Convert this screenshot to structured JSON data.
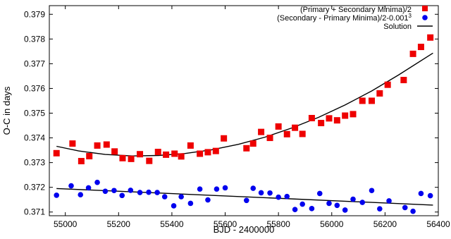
{
  "chart_data": {
    "type": "scatter",
    "xlabel": "BJD - 2400000",
    "ylabel": "O-C in days",
    "xlim": [
      54940,
      56400
    ],
    "ylim": [
      0.37085,
      0.37935
    ],
    "xticks": [
      55000,
      55200,
      55400,
      55600,
      55800,
      56000,
      56200,
      56400
    ],
    "xtick_labels": [
      "55000",
      "55200",
      "55400",
      "55600",
      "55800",
      "56000",
      "56200",
      "56400"
    ],
    "yticks": [
      0.371,
      0.372,
      0.373,
      0.374,
      0.375,
      0.376,
      0.377,
      0.378,
      0.379
    ],
    "ytick_labels": [
      "0.371",
      "0.372",
      "0.373",
      "0.374",
      "0.375",
      "0.376",
      "0.377",
      "0.378",
      "0.379"
    ],
    "grid": false,
    "legend_position": "top-right",
    "series": [
      {
        "name": "(Primary + Secondary Minima)/2",
        "marker": "square",
        "color": "#ee0000",
        "points": [
          [
            54967,
            0.37338
          ],
          [
            55027,
            0.37377
          ],
          [
            55060,
            0.37306
          ],
          [
            55090,
            0.37326
          ],
          [
            55120,
            0.37369
          ],
          [
            55155,
            0.37373
          ],
          [
            55185,
            0.37345
          ],
          [
            55215,
            0.37318
          ],
          [
            55247,
            0.37315
          ],
          [
            55280,
            0.37334
          ],
          [
            55315,
            0.37307
          ],
          [
            55348,
            0.37343
          ],
          [
            55378,
            0.37332
          ],
          [
            55410,
            0.37336
          ],
          [
            55435,
            0.37325
          ],
          [
            55470,
            0.37369
          ],
          [
            55505,
            0.37336
          ],
          [
            55535,
            0.37342
          ],
          [
            55565,
            0.37347
          ],
          [
            55595,
            0.37398
          ],
          [
            55680,
            0.37358
          ],
          [
            55705,
            0.37377
          ],
          [
            55735,
            0.37424
          ],
          [
            55768,
            0.374
          ],
          [
            55800,
            0.37446
          ],
          [
            55832,
            0.37415
          ],
          [
            55862,
            0.37441
          ],
          [
            55890,
            0.37416
          ],
          [
            55925,
            0.3748
          ],
          [
            55960,
            0.3746
          ],
          [
            55990,
            0.37479
          ],
          [
            56020,
            0.37471
          ],
          [
            56050,
            0.3749
          ],
          [
            56080,
            0.37496
          ],
          [
            56115,
            0.3755
          ],
          [
            56150,
            0.3755
          ],
          [
            56180,
            0.3758
          ],
          [
            56210,
            0.37615
          ],
          [
            56270,
            0.37634
          ],
          [
            56305,
            0.3774
          ],
          [
            56335,
            0.37768
          ],
          [
            56370,
            0.37806
          ]
        ]
      },
      {
        "name": "(Secondary - Primary Minima)/2-0.001³",
        "legend_main": "(Secondary - Primary Minima)/2-0.001",
        "legend_superscript": "3",
        "marker": "circle",
        "color": "#0000ee",
        "points": [
          [
            54967,
            0.37168
          ],
          [
            55022,
            0.37206
          ],
          [
            55057,
            0.3717
          ],
          [
            55087,
            0.37198
          ],
          [
            55120,
            0.3722
          ],
          [
            55150,
            0.37184
          ],
          [
            55183,
            0.37187
          ],
          [
            55213,
            0.37167
          ],
          [
            55245,
            0.37188
          ],
          [
            55280,
            0.37179
          ],
          [
            55313,
            0.3718
          ],
          [
            55345,
            0.37179
          ],
          [
            55373,
            0.37162
          ],
          [
            55407,
            0.37125
          ],
          [
            55435,
            0.37162
          ],
          [
            55470,
            0.37135
          ],
          [
            55505,
            0.37193
          ],
          [
            55535,
            0.37149
          ],
          [
            55568,
            0.37193
          ],
          [
            55600,
            0.37198
          ],
          [
            55680,
            0.37147
          ],
          [
            55705,
            0.37196
          ],
          [
            55735,
            0.37178
          ],
          [
            55768,
            0.37177
          ],
          [
            55800,
            0.3716
          ],
          [
            55832,
            0.37163
          ],
          [
            55862,
            0.3711
          ],
          [
            55890,
            0.37132
          ],
          [
            55925,
            0.37114
          ],
          [
            55955,
            0.37175
          ],
          [
            55990,
            0.37135
          ],
          [
            56020,
            0.37127
          ],
          [
            56050,
            0.37108
          ],
          [
            56080,
            0.37152
          ],
          [
            56115,
            0.37139
          ],
          [
            56150,
            0.37187
          ],
          [
            56180,
            0.37113
          ],
          [
            56215,
            0.37145
          ],
          [
            56275,
            0.37118
          ],
          [
            56305,
            0.37103
          ],
          [
            56335,
            0.37175
          ],
          [
            56370,
            0.37166
          ]
        ]
      },
      {
        "name": "Solution",
        "marker": "line",
        "color": "#000000",
        "curves": [
          {
            "x": [
              54967,
              55050,
              55150,
              55250,
              55350,
              55450,
              55550,
              55650,
              55750,
              55850,
              55950,
              56050,
              56150,
              56250,
              56380
            ],
            "y": [
              0.37366,
              0.37347,
              0.37333,
              0.37327,
              0.37329,
              0.37337,
              0.37352,
              0.37374,
              0.37403,
              0.3744,
              0.37483,
              0.37533,
              0.3759,
              0.37654,
              0.37743
            ]
          },
          {
            "x": [
              54967,
              56380
            ],
            "y": [
              0.37195,
              0.37128
            ]
          }
        ]
      }
    ]
  }
}
